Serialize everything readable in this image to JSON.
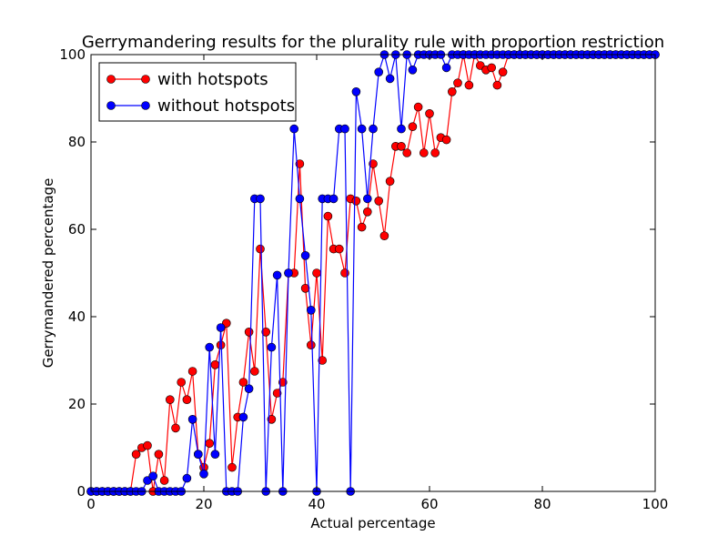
{
  "chart_data": {
    "type": "line",
    "title": "Gerrymandering results for the plurality rule with proportion restriction",
    "xlabel": "Actual percentage",
    "ylabel": "Gerrymandered percentage",
    "xlim": [
      0,
      100
    ],
    "ylim": [
      0,
      100
    ],
    "xticks": [
      0,
      20,
      40,
      60,
      80,
      100
    ],
    "yticks": [
      0,
      20,
      40,
      60,
      80,
      100
    ],
    "grid": false,
    "legend": "top-left",
    "series": [
      {
        "name": "with hotspots",
        "color": "#ff0000",
        "x": [
          0,
          1,
          2,
          3,
          4,
          5,
          6,
          7,
          8,
          9,
          10,
          11,
          12,
          13,
          14,
          15,
          16,
          17,
          18,
          19,
          20,
          21,
          22,
          23,
          24,
          25,
          26,
          27,
          28,
          29,
          30,
          31,
          32,
          33,
          34,
          35,
          36,
          37,
          38,
          39,
          40,
          41,
          42,
          43,
          44,
          45,
          46,
          47,
          48,
          49,
          50,
          51,
          52,
          53,
          54,
          55,
          56,
          57,
          58,
          59,
          60,
          61,
          62,
          63,
          64,
          65,
          66,
          67,
          68,
          69,
          70,
          71,
          72,
          73,
          74,
          75,
          76,
          77,
          78,
          79,
          80,
          81,
          82,
          83,
          84,
          85,
          86,
          87,
          88,
          89,
          90,
          91,
          92,
          93,
          94,
          95,
          96,
          97,
          98,
          99,
          100
        ],
        "y": [
          0,
          0,
          0,
          0,
          0,
          0,
          0,
          0,
          8.5,
          10,
          10.5,
          0,
          8.5,
          2.5,
          21,
          14.5,
          25,
          21,
          27.5,
          8.5,
          5.5,
          11,
          29,
          33.5,
          38.5,
          5.5,
          17,
          25,
          36.5,
          27.5,
          55.5,
          36.5,
          16.5,
          22.5,
          25,
          50,
          50,
          75,
          46.5,
          33.5,
          50,
          30,
          63,
          55.5,
          55.5,
          50,
          67,
          66.5,
          60.5,
          64,
          75,
          66.5,
          58.5,
          71,
          79,
          79,
          77.5,
          83.5,
          88,
          77.5,
          86.5,
          77.5,
          81,
          80.5,
          91.5,
          93.5,
          100,
          93,
          100,
          97.5,
          96.5,
          97,
          93,
          96,
          100,
          100,
          100,
          100,
          100,
          100,
          100,
          100,
          100,
          100,
          100,
          100,
          100,
          100,
          100,
          100,
          100,
          100,
          100,
          100,
          100,
          100,
          100,
          100,
          100,
          100,
          100
        ]
      },
      {
        "name": "without hotspots",
        "color": "#0000ff",
        "x": [
          0,
          1,
          2,
          3,
          4,
          5,
          6,
          7,
          8,
          9,
          10,
          11,
          12,
          13,
          14,
          15,
          16,
          17,
          18,
          19,
          20,
          21,
          22,
          23,
          24,
          25,
          26,
          27,
          28,
          29,
          30,
          31,
          32,
          33,
          34,
          35,
          36,
          37,
          38,
          39,
          40,
          41,
          42,
          43,
          44,
          45,
          46,
          47,
          48,
          49,
          50,
          51,
          52,
          53,
          54,
          55,
          56,
          57,
          58,
          59,
          60,
          61,
          62,
          63,
          64,
          65,
          66,
          67,
          68,
          69,
          70,
          71,
          72,
          73,
          74,
          75,
          76,
          77,
          78,
          79,
          80,
          81,
          82,
          83,
          84,
          85,
          86,
          87,
          88,
          89,
          90,
          91,
          92,
          93,
          94,
          95,
          96,
          97,
          98,
          99,
          100
        ],
        "y": [
          0,
          0,
          0,
          0,
          0,
          0,
          0,
          0,
          0,
          0,
          2.5,
          3.5,
          0,
          0,
          0,
          0,
          0,
          3,
          16.5,
          8.5,
          4,
          33,
          8.5,
          37.5,
          0,
          0,
          0,
          17,
          23.5,
          67,
          67,
          0,
          33,
          49.5,
          0,
          50,
          83,
          67,
          54,
          41.5,
          0,
          67,
          67,
          67,
          83,
          83,
          0,
          91.5,
          83,
          67,
          83,
          96,
          100,
          94.5,
          100,
          83,
          100,
          96.5,
          100,
          100,
          100,
          100,
          100,
          97,
          100,
          100,
          100,
          100,
          100,
          100,
          100,
          100,
          100,
          100,
          100,
          100,
          100,
          100,
          100,
          100,
          100,
          100,
          100,
          100,
          100,
          100,
          100,
          100,
          100,
          100,
          100,
          100,
          100,
          100,
          100,
          100,
          100,
          100,
          100,
          100,
          100
        ]
      }
    ]
  }
}
